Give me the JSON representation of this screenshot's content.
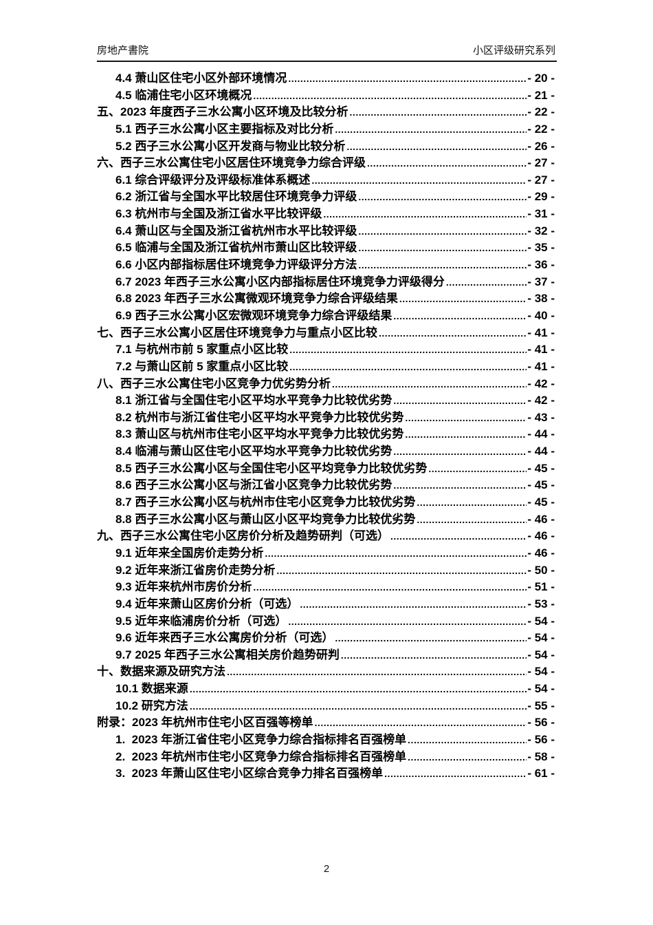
{
  "header": {
    "left": "房地产書院",
    "right": "小区评级研究系列"
  },
  "toc": {
    "entries": [
      {
        "level": 2,
        "label": "4.4 萧山区住宅小区外部环境情况",
        "page": "- 20 -"
      },
      {
        "level": 2,
        "label": "4.5 临浦住宅小区环境概况",
        "page": "- 21 -"
      },
      {
        "level": 1,
        "label": "五、2023 年度西子三水公寓小区环境及比较分析",
        "page": "- 22 -"
      },
      {
        "level": 2,
        "label": "5.1 西子三水公寓小区主要指标及对比分析",
        "page": "- 22 -"
      },
      {
        "level": 2,
        "label": "5.2 西子三水公寓小区开发商与物业比较分析",
        "page": "- 26 -"
      },
      {
        "level": 1,
        "label": "六、西子三水公寓住宅小区居住环境竞争力综合评级",
        "page": "- 27 -"
      },
      {
        "level": 2,
        "label": "6.1 综合评级评分及评级标准体系概述",
        "page": "- 27 -"
      },
      {
        "level": 2,
        "label": "6.2 浙江省与全国水平比较居住环境竞争力评级",
        "page": "- 29 -"
      },
      {
        "level": 2,
        "label": "6.3 杭州市与全国及浙江省水平比较评级",
        "page": "- 31 -"
      },
      {
        "level": 2,
        "label": "6.4 萧山区与全国及浙江省杭州市水平比较评级",
        "page": "- 32 -"
      },
      {
        "level": 2,
        "label": "6.5 临浦与全国及浙江省杭州市萧山区比较评级",
        "page": "- 35 -"
      },
      {
        "level": 2,
        "label": "6.6 小区内部指标居住环境竞争力评级评分方法",
        "page": "- 36 -"
      },
      {
        "level": 2,
        "label": "6.7 2023 年西子三水公寓小区内部指标居住环境竞争力评级得分",
        "page": "- 37 -"
      },
      {
        "level": 2,
        "label": "6.8 2023 年西子三水公寓微观环境竞争力综合评级结果",
        "page": "- 38 -"
      },
      {
        "level": 2,
        "label": "6.9 西子三水公寓小区宏微观环境竞争力综合评级结果",
        "page": "- 40 -"
      },
      {
        "level": 1,
        "label": "七、西子三水公寓小区居住环境竞争力与重点小区比较",
        "page": "- 41 -"
      },
      {
        "level": 2,
        "label": "7.1 与杭州市前 5 家重点小区比较",
        "page": "- 41 -"
      },
      {
        "level": 2,
        "label": "7.2 与萧山区前 5 家重点小区比较",
        "page": "- 41 -"
      },
      {
        "level": 1,
        "label": "八、西子三水公寓住宅小区竞争力优劣势分析",
        "page": "- 42 -"
      },
      {
        "level": 2,
        "label": "8.1 浙江省与全国住宅小区平均水平竞争力比较优劣势",
        "page": "- 42 -"
      },
      {
        "level": 2,
        "label": "8.2 杭州市与浙江省住宅小区平均水平竞争力比较优劣势",
        "page": "- 43 -"
      },
      {
        "level": 2,
        "label": "8.3 萧山区与杭州市住宅小区平均水平竞争力比较优劣势",
        "page": "- 44 -"
      },
      {
        "level": 2,
        "label": "8.4 临浦与萧山区住宅小区平均水平竞争力比较优劣势",
        "page": "- 44 -"
      },
      {
        "level": 2,
        "label": "8.5 西子三水公寓小区与全国住宅小区平均竞争力比较优劣势",
        "page": "- 45 -"
      },
      {
        "level": 2,
        "label": "8.6 西子三水公寓小区与浙江省小区竞争力比较优劣势",
        "page": "- 45 -"
      },
      {
        "level": 2,
        "label": "8.7 西子三水公寓小区与杭州市住宅小区竞争力比较优劣势",
        "page": "- 45 -"
      },
      {
        "level": 2,
        "label": "8.8 西子三水公寓小区与萧山区小区平均竞争力比较优劣势",
        "page": "- 46 -"
      },
      {
        "level": 1,
        "label": "九、西子三水公寓住宅小区房价分析及趋势研判（可选）",
        "page": "- 46 -"
      },
      {
        "level": 2,
        "label": "9.1 近年来全国房价走势分析",
        "page": "- 46 -"
      },
      {
        "level": 2,
        "label": "9.2 近年来浙江省房价走势分析",
        "page": "- 50 -"
      },
      {
        "level": 2,
        "label": "9.3 近年来杭州市房价分析",
        "page": "- 51 -"
      },
      {
        "level": 2,
        "label": "9.4 近年来萧山区房价分析（可选）",
        "page": "- 53 -"
      },
      {
        "level": 2,
        "label": "9.5 近年来临浦房价分析（可选）",
        "page": "- 54 -"
      },
      {
        "level": 2,
        "label": "9.6 近年来西子三水公寓房价分析（可选）",
        "page": "- 54 -"
      },
      {
        "level": 2,
        "label": "9.7 2025 年西子三水公寓相关房价趋势研判",
        "page": "- 54 -"
      },
      {
        "level": 1,
        "label": "十、数据来源及研究方法",
        "page": "- 54 -"
      },
      {
        "level": 2,
        "label": "10.1 数据来源",
        "page": "- 54 -"
      },
      {
        "level": 2,
        "label": "10.2 研究方法",
        "page": "- 55 -"
      },
      {
        "level": 1,
        "label": "附录：2023 年杭州市住宅小区百强等榜单",
        "page": "- 56 -"
      },
      {
        "level": 2,
        "label": "1.  2023 年浙江省住宅小区竞争力综合指标排名百强榜单",
        "page": "- 56 -"
      },
      {
        "level": 2,
        "label": "2.  2023 年杭州市住宅小区竞争力综合指标排名百强榜单",
        "page": "- 58 -"
      },
      {
        "level": 2,
        "label": "3.  2023 年萧山区住宅小区综合竞争力排名百强榜单",
        "page": "- 61 -"
      }
    ]
  },
  "footer": {
    "page_number": "2"
  }
}
